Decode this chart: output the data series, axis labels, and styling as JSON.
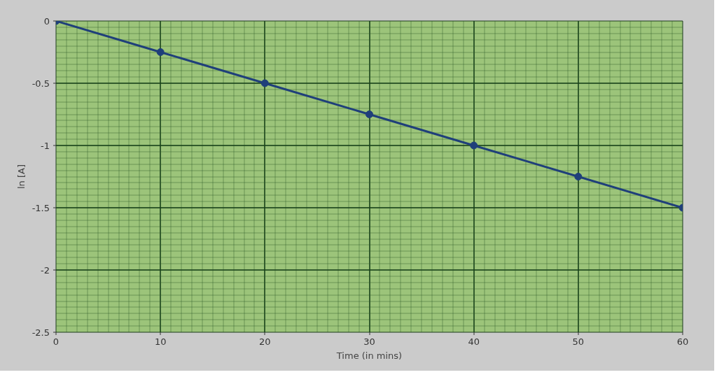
{
  "chart_data": {
    "type": "line",
    "xlabel": "Time (in mins)",
    "ylabel": "ln [A]",
    "x": [
      0,
      10,
      20,
      30,
      40,
      50,
      60
    ],
    "series": [
      {
        "color": "#1f3f7a",
        "values": [
          0,
          -0.25,
          -0.5,
          -0.75,
          -1,
          -1.25,
          -1.5
        ]
      }
    ],
    "xlim": [
      0,
      60
    ],
    "ylim": [
      -2.5,
      0
    ],
    "xticks": [
      0,
      10,
      20,
      30,
      40,
      50,
      60
    ],
    "yticks": [
      {
        "value": -2.5,
        "label": "-2.5"
      },
      {
        "value": -2,
        "label": "-2"
      },
      {
        "value": -1.5,
        "label": "-1.5"
      },
      {
        "value": -1,
        "label": "-1"
      },
      {
        "value": -0.5,
        "label": "-0.5"
      },
      {
        "value": 0,
        "label": "0"
      }
    ],
    "grid": true,
    "marker": "circle",
    "line_style": "solid"
  }
}
